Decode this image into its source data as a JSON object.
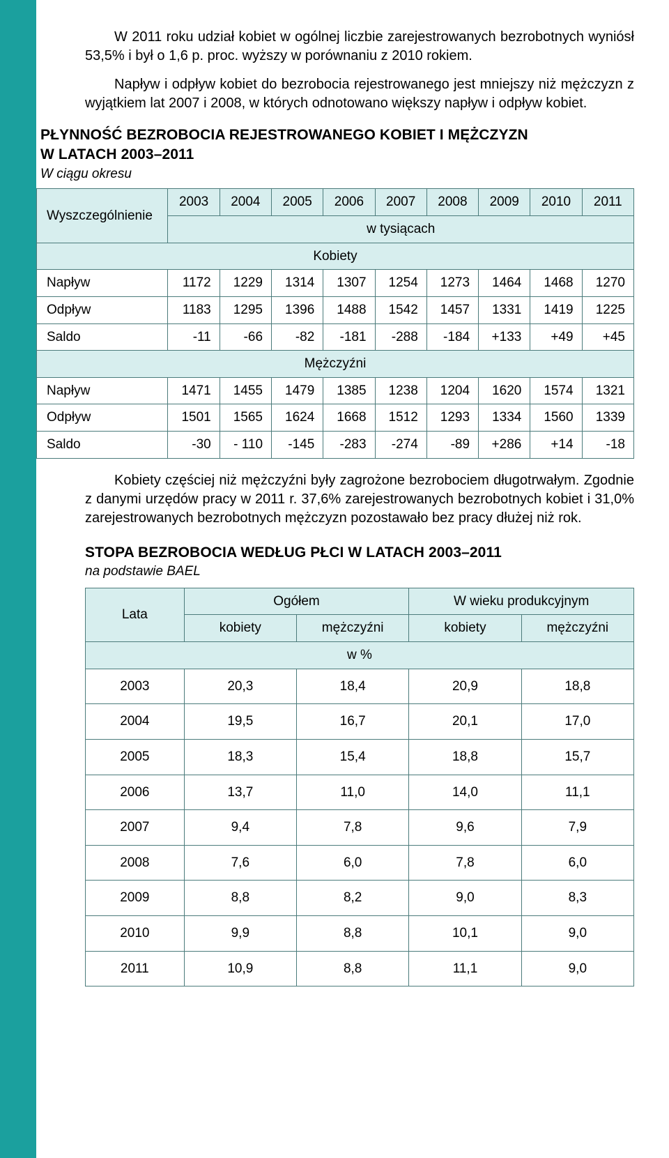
{
  "para1": "W 2011 roku udział kobiet w ogólnej liczbie zarejestrowanych bezrobotnych wyniósł 53,5% i był o 1,6 p. proc. wyższy w porównaniu z 2010 rokiem.",
  "para2": "Napływ i odpływ kobiet do bezrobocia rejestrowanego jest mniejszy niż mężczyzn z wyjątkiem lat 2007 i 2008, w których odnotowano większy napływ i odpływ kobiet.",
  "section1": {
    "title_line1": "PŁYNNOŚĆ BEZROBOCIA REJESTROWANEGO KOBIET I MĘŻCZYZN",
    "title_line2": "W LATACH 2003–2011",
    "subtitle": "W ciągu okresu",
    "col_label": "Wyszczególnienie",
    "years": [
      "2003",
      "2004",
      "2005",
      "2006",
      "2007",
      "2008",
      "2009",
      "2010",
      "2011"
    ],
    "unit_label": "w  tysiącach",
    "group1": "Kobiety",
    "group2": "Mężczyźni",
    "rows_g1": [
      {
        "label": "Napływ",
        "vals": [
          "1172",
          "1229",
          "1314",
          "1307",
          "1254",
          "1273",
          "1464",
          "1468",
          "1270"
        ]
      },
      {
        "label": "Odpływ",
        "vals": [
          "1183",
          "1295",
          "1396",
          "1488",
          "1542",
          "1457",
          "1331",
          "1419",
          "1225"
        ]
      },
      {
        "label": "Saldo",
        "vals": [
          "-11",
          "-66",
          "-82",
          "-181",
          "-288",
          "-184",
          "+133",
          "+49",
          "+45"
        ]
      }
    ],
    "rows_g2": [
      {
        "label": "Napływ",
        "vals": [
          "1471",
          "1455",
          "1479",
          "1385",
          "1238",
          "1204",
          "1620",
          "1574",
          "1321"
        ]
      },
      {
        "label": "Odpływ",
        "vals": [
          "1501",
          "1565",
          "1624",
          "1668",
          "1512",
          "1293",
          "1334",
          "1560",
          "1339"
        ]
      },
      {
        "label": "Saldo",
        "vals": [
          "-30",
          "- 110",
          "-145",
          "-283",
          "-274",
          "-89",
          "+286",
          "+14",
          "-18"
        ]
      }
    ]
  },
  "para3": "Kobiety częściej niż mężczyźni były zagrożone bezrobociem długotrwałym. Zgodnie z danymi urzędów pracy w 2011 r. 37,6% zarejestrowanych bezrobotnych kobiet i 31,0% zarejestrowanych bezrobotnych mężczyzn pozostawało bez pracy dłużej niż rok.",
  "section2": {
    "title": "STOPA BEZROBOCIA WEDŁUG PŁCI W LATACH 2003–2011",
    "subtitle": "na podstawie BAEL",
    "col_lata": "Lata",
    "grp_ogolem": "Ogółem",
    "grp_wiek": "W wieku produkcyjnym",
    "sub_k": "kobiety",
    "sub_m": "mężczyźni",
    "unit": "w   %",
    "rows": [
      {
        "y": "2003",
        "v": [
          "20,3",
          "18,4",
          "20,9",
          "18,8"
        ]
      },
      {
        "y": "2004",
        "v": [
          "19,5",
          "16,7",
          "20,1",
          "17,0"
        ]
      },
      {
        "y": "2005",
        "v": [
          "18,3",
          "15,4",
          "18,8",
          "15,7"
        ]
      },
      {
        "y": "2006",
        "v": [
          "13,7",
          "11,0",
          "14,0",
          "11,1"
        ]
      },
      {
        "y": "2007",
        "v": [
          "9,4",
          "7,8",
          "9,6",
          "7,9"
        ]
      },
      {
        "y": "2008",
        "v": [
          "7,6",
          "6,0",
          "7,8",
          "6,0"
        ]
      },
      {
        "y": "2009",
        "v": [
          "8,8",
          "8,2",
          "9,0",
          "8,3"
        ]
      },
      {
        "y": "2010",
        "v": [
          "9,9",
          "8,8",
          "10,1",
          "9,0"
        ]
      },
      {
        "y": "2011",
        "v": [
          "10,9",
          "8,8",
          "11,1",
          "9,0"
        ]
      }
    ]
  }
}
